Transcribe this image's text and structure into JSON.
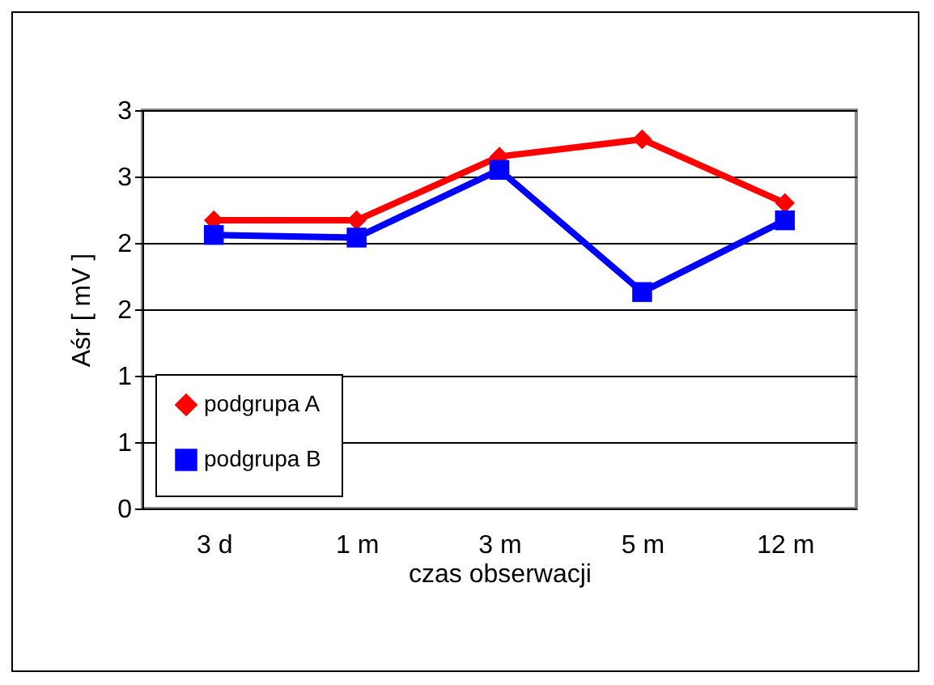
{
  "chart_data": {
    "type": "line",
    "xlabel": "czas obserwacji",
    "ylabel": "Aśr [ mV ]",
    "categories": [
      "3 d",
      "1 m",
      "3 m",
      "5 m",
      "12 m"
    ],
    "series": [
      {
        "name": "podgrupa A",
        "color": "#ff0000",
        "marker": "diamond",
        "values": [
          2.17,
          2.17,
          2.65,
          2.78,
          2.3
        ]
      },
      {
        "name": "podgrupa B",
        "color": "#0000ff",
        "marker": "square",
        "values": [
          2.06,
          2.04,
          2.55,
          1.63,
          2.17
        ]
      }
    ],
    "ylim": [
      0,
      3
    ],
    "yticks": [
      0,
      {
        "value": 0.5,
        "label": "1"
      },
      1,
      {
        "value": 1.5,
        "label": "2"
      },
      2,
      {
        "value": 2.5,
        "label": "3"
      },
      3
    ],
    "grid": "y",
    "legend": "bottom left"
  }
}
